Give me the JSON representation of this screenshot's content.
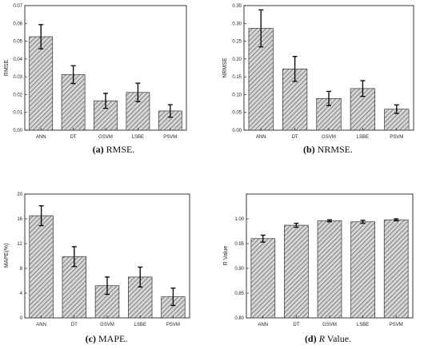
{
  "chart_data": [
    {
      "type": "bar",
      "caption": {
        "letter": "(a)",
        "text": " RMSE."
      },
      "ylabel": "RMSE",
      "xlabel": "",
      "categories": [
        "ANN",
        "DT",
        "GSVM",
        "LSBE",
        "PSVM"
      ],
      "values": [
        0.0525,
        0.0312,
        0.0165,
        0.0212,
        0.0108
      ],
      "errors": [
        0.0068,
        0.005,
        0.0042,
        0.0052,
        0.0035
      ],
      "ylim": [
        0,
        0.07
      ],
      "yticks": [
        "0.00",
        "0.01",
        "0.02",
        "0.03",
        "0.04",
        "0.05",
        "0.06",
        "0.07"
      ],
      "legend": "none",
      "grid": false
    },
    {
      "type": "bar",
      "caption": {
        "letter": "(b)",
        "text": " NRMSE."
      },
      "ylabel": "NRMSE",
      "xlabel": "",
      "categories": [
        "ANN",
        "DT",
        "GSVM",
        "LSBE",
        "PSVM"
      ],
      "values": [
        0.286,
        0.172,
        0.089,
        0.117,
        0.059
      ],
      "errors": [
        0.052,
        0.035,
        0.02,
        0.022,
        0.012
      ],
      "ylim": [
        0,
        0.35
      ],
      "yticks": [
        "0.00",
        "0.05",
        "0.10",
        "0.15",
        "0.20",
        "0.25",
        "0.30",
        "0.35"
      ],
      "legend": "none",
      "grid": false
    },
    {
      "type": "bar",
      "caption": {
        "letter": "(c)",
        "text": " MAPE."
      },
      "ylabel": "MAPE(%)",
      "xlabel": "",
      "categories": [
        "ANN",
        "DT",
        "GSVM",
        "LSBE",
        "PSVM"
      ],
      "values": [
        16.5,
        9.9,
        5.2,
        6.6,
        3.4
      ],
      "errors": [
        1.6,
        1.6,
        1.4,
        1.6,
        1.4
      ],
      "ylim": [
        0,
        20
      ],
      "yticks": [
        "0",
        "4",
        "8",
        "12",
        "16",
        "20"
      ],
      "legend": "none",
      "grid": false
    },
    {
      "type": "bar",
      "caption": {
        "letter": "(d)",
        "italic": "R",
        "text": " Value."
      },
      "ylabel": "R Value",
      "xlabel": "",
      "categories": [
        "ANN",
        "DT",
        "GSVM",
        "LSBE",
        "PSVM"
      ],
      "values": [
        0.96,
        0.987,
        0.996,
        0.994,
        0.998
      ],
      "errors": [
        0.007,
        0.004,
        0.002,
        0.003,
        0.002
      ],
      "ylim": [
        0.8,
        1.05
      ],
      "yticks": [
        "0.80",
        "0.85",
        "0.90",
        "0.95",
        "1.00"
      ],
      "legend": "none",
      "grid": false
    }
  ]
}
